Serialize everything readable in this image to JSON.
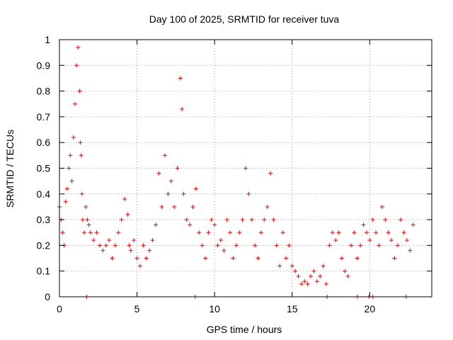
{
  "chart_data": {
    "type": "scatter",
    "title": "Day 100 of 2025, SRMTID for receiver tuva",
    "xlabel": "GPS time / hours",
    "ylabel": "SRMTID / TECUs",
    "xlim": [
      0,
      24
    ],
    "ylim": [
      0,
      1
    ],
    "xticks": [
      0,
      5,
      10,
      15,
      20
    ],
    "xtick_labels": [
      "0",
      "5",
      "10",
      "15",
      "20"
    ],
    "yticks": [
      0,
      0.1,
      0.2,
      0.3,
      0.4,
      0.5,
      0.6,
      0.7,
      0.8,
      0.9,
      1
    ],
    "ytick_labels": [
      "0",
      "0.1",
      "0.2",
      "0.3",
      "0.4",
      "0.5",
      "0.6",
      "0.7",
      "0.8",
      "0.9",
      "1"
    ],
    "grid": true,
    "marker": "+",
    "colors": {
      "points": "#ff0000",
      "frame": "#000000",
      "grid": "#a0a0a0"
    },
    "series": [
      {
        "name": "SRMTID",
        "x": [
          0.0,
          0.1,
          0.2,
          0.3,
          0.4,
          0.5,
          0.6,
          0.7,
          0.8,
          0.9,
          1.0,
          1.1,
          1.2,
          1.3,
          1.35,
          1.4,
          1.45,
          1.5,
          1.6,
          1.7,
          1.8,
          1.9,
          2.0,
          2.2,
          2.4,
          2.6,
          2.8,
          3.0,
          3.2,
          3.4,
          3.6,
          3.8,
          4.0,
          4.2,
          4.4,
          4.5,
          4.6,
          4.8,
          5.0,
          5.2,
          5.4,
          5.6,
          5.8,
          6.0,
          6.2,
          6.4,
          6.6,
          6.8,
          7.0,
          7.2,
          7.4,
          7.6,
          7.8,
          7.9,
          8.0,
          8.2,
          8.4,
          8.6,
          8.8,
          9.0,
          9.2,
          9.4,
          9.6,
          9.8,
          10.0,
          10.2,
          10.4,
          10.6,
          10.8,
          11.0,
          11.2,
          11.4,
          11.6,
          11.8,
          12.0,
          12.2,
          12.4,
          12.6,
          12.8,
          13.0,
          13.2,
          13.4,
          13.6,
          13.8,
          14.0,
          14.2,
          14.4,
          14.6,
          14.8,
          15.0,
          15.2,
          15.4,
          15.6,
          15.8,
          16.0,
          16.2,
          16.4,
          16.6,
          16.8,
          17.0,
          17.2,
          17.4,
          17.6,
          17.8,
          18.0,
          18.2,
          18.4,
          18.6,
          18.8,
          19.0,
          19.2,
          19.4,
          19.6,
          19.8,
          20.0,
          20.2,
          20.4,
          20.6,
          20.8,
          21.0,
          21.2,
          21.4,
          21.6,
          21.8,
          22.0,
          22.2,
          22.4,
          22.6,
          22.8,
          1.75,
          8.75,
          17.25,
          19.2,
          19.95,
          20.2,
          22.35
        ],
        "y": [
          0.35,
          0.3,
          0.25,
          0.2,
          0.37,
          0.42,
          0.5,
          0.55,
          0.45,
          0.62,
          0.75,
          0.9,
          0.97,
          0.8,
          0.6,
          0.55,
          0.4,
          0.3,
          0.25,
          0.35,
          0.3,
          0.28,
          0.25,
          0.22,
          0.25,
          0.2,
          0.18,
          0.2,
          0.22,
          0.15,
          0.2,
          0.25,
          0.3,
          0.38,
          0.32,
          0.2,
          0.18,
          0.22,
          0.15,
          0.12,
          0.2,
          0.15,
          0.18,
          0.22,
          0.28,
          0.48,
          0.35,
          0.55,
          0.4,
          0.45,
          0.35,
          0.5,
          0.85,
          0.73,
          0.4,
          0.3,
          0.28,
          0.35,
          0.42,
          0.25,
          0.2,
          0.15,
          0.25,
          0.3,
          0.28,
          0.2,
          0.22,
          0.18,
          0.3,
          0.25,
          0.15,
          0.2,
          0.25,
          0.3,
          0.5,
          0.4,
          0.3,
          0.2,
          0.15,
          0.25,
          0.3,
          0.35,
          0.48,
          0.3,
          0.2,
          0.12,
          0.25,
          0.15,
          0.2,
          0.12,
          0.1,
          0.08,
          0.05,
          0.06,
          0.05,
          0.08,
          0.1,
          0.06,
          0.08,
          0.12,
          0.05,
          0.2,
          0.25,
          0.22,
          0.25,
          0.15,
          0.1,
          0.08,
          0.2,
          0.25,
          0.15,
          0.2,
          0.28,
          0.25,
          0.22,
          0.3,
          0.25,
          0.2,
          0.35,
          0.3,
          0.25,
          0.22,
          0.15,
          0.2,
          0.3,
          0.25,
          0.22,
          0.18,
          0.28,
          0.0,
          0.0,
          0.0,
          0.0,
          0.0,
          0.0,
          0.0
        ]
      }
    ]
  }
}
